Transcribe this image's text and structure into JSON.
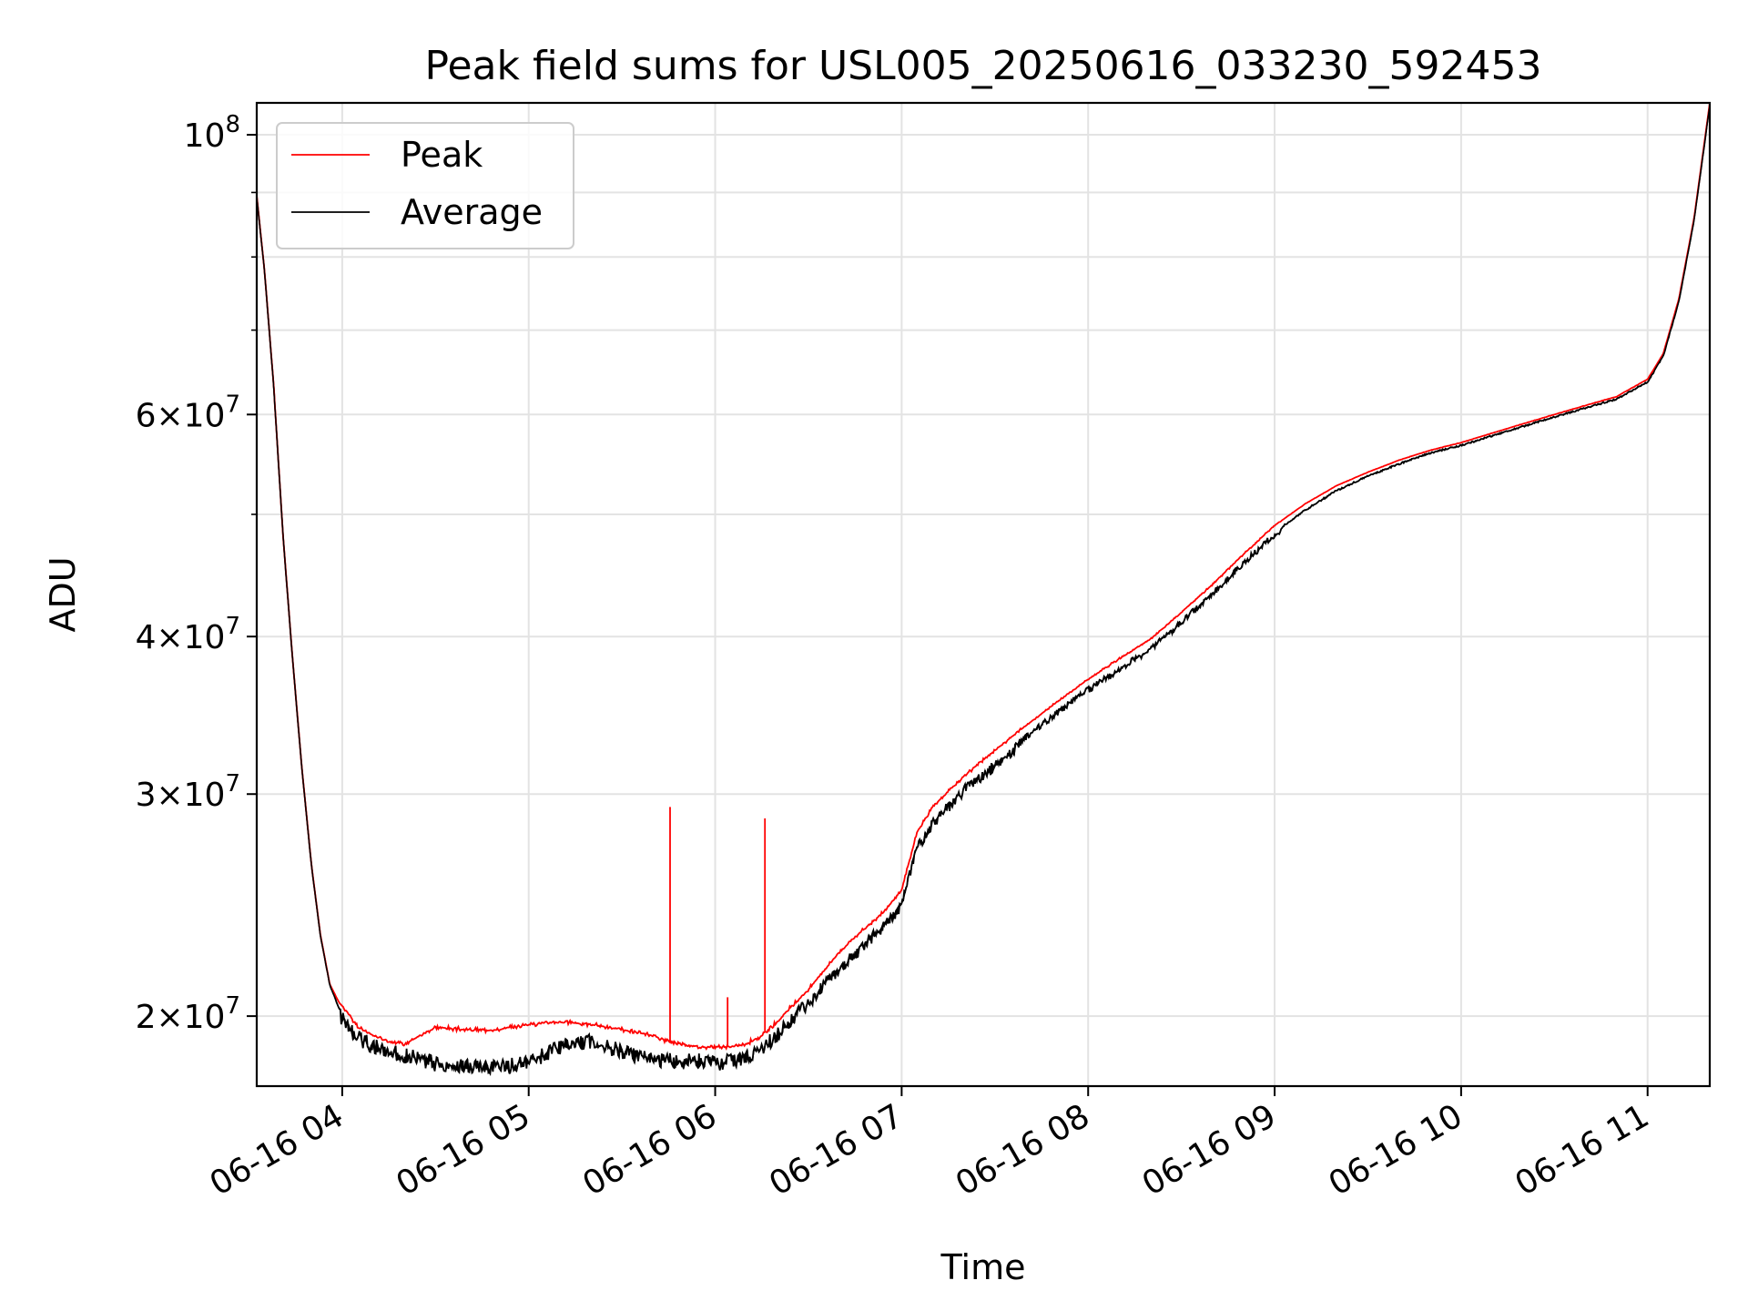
{
  "chart_data": {
    "type": "line",
    "title": "Peak field sums for USL005_20250616_033230_592453",
    "xlabel": "Time",
    "ylabel": "ADU",
    "yscale": "log",
    "xlim": [
      "2025-06-16T03:32:30",
      "2025-06-16T11:20:00"
    ],
    "ylim": [
      17600000,
      106000000
    ],
    "x_ticks": [
      {
        "at": "2025-06-16T04:00:00",
        "label": "06-16 04"
      },
      {
        "at": "2025-06-16T05:00:00",
        "label": "06-16 05"
      },
      {
        "at": "2025-06-16T06:00:00",
        "label": "06-16 06"
      },
      {
        "at": "2025-06-16T07:00:00",
        "label": "06-16 07"
      },
      {
        "at": "2025-06-16T08:00:00",
        "label": "06-16 08"
      },
      {
        "at": "2025-06-16T09:00:00",
        "label": "06-16 09"
      },
      {
        "at": "2025-06-16T10:00:00",
        "label": "06-16 10"
      },
      {
        "at": "2025-06-16T11:00:00",
        "label": "06-16 11"
      }
    ],
    "y_ticks": [
      {
        "value": 20000000,
        "base": "2",
        "exp": "7"
      },
      {
        "value": 30000000,
        "base": "3",
        "exp": "7"
      },
      {
        "value": 40000000,
        "base": "4",
        "exp": "7"
      },
      {
        "value": 60000000,
        "base": "6",
        "exp": "7"
      },
      {
        "value": 100000000,
        "base": "10",
        "exp": "8"
      }
    ],
    "y_minor_ticks": [
      50000000,
      70000000,
      80000000,
      90000000
    ],
    "grid": true,
    "legend_position": "top-left",
    "series": [
      {
        "name": "Peak",
        "color": "#ff0000",
        "x": [
          "03:32",
          "03:35",
          "03:38",
          "03:41",
          "03:44",
          "03:47",
          "03:50",
          "03:53",
          "03:56",
          "03:59",
          "04:02",
          "04:05",
          "04:10",
          "04:15",
          "04:20",
          "04:30",
          "04:40",
          "04:50",
          "05:00",
          "05:10",
          "05:20",
          "05:30",
          "05:40",
          "05:45",
          "05:50",
          "05:55",
          "06:00",
          "06:05",
          "06:10",
          "06:15",
          "06:20",
          "06:30",
          "06:40",
          "06:50",
          "06:55",
          "07:00",
          "07:05",
          "07:10",
          "07:20",
          "07:30",
          "07:40",
          "07:50",
          "08:00",
          "08:10",
          "08:20",
          "08:30",
          "08:40",
          "08:50",
          "09:00",
          "09:10",
          "09:20",
          "09:30",
          "09:40",
          "09:50",
          "10:00",
          "10:10",
          "10:20",
          "10:30",
          "10:40",
          "10:50",
          "11:00",
          "11:05",
          "11:10",
          "11:15",
          "11:20"
        ],
        "y": [
          92000000,
          78000000,
          63000000,
          48000000,
          38500000,
          31500000,
          26500000,
          23200000,
          21200000,
          20500000,
          20100000,
          19600000,
          19300000,
          19100000,
          19000000,
          19600000,
          19500000,
          19500000,
          19700000,
          19800000,
          19700000,
          19500000,
          19300000,
          19100000,
          19000000,
          18900000,
          18900000,
          18900000,
          19000000,
          19300000,
          19800000,
          21000000,
          22500000,
          23700000,
          24300000,
          25200000,
          28000000,
          29300000,
          31000000,
          32500000,
          34000000,
          35500000,
          37000000,
          38400000,
          39800000,
          41800000,
          44000000,
          46500000,
          49000000,
          51000000,
          52700000,
          54000000,
          55200000,
          56200000,
          57000000,
          58000000,
          59000000,
          60000000,
          61000000,
          62000000,
          64000000,
          67000000,
          74000000,
          86000000,
          106000000
        ]
      },
      {
        "name": "Average",
        "color": "#000000",
        "x": [
          "03:32",
          "03:35",
          "03:38",
          "03:41",
          "03:44",
          "03:47",
          "03:50",
          "03:53",
          "03:56",
          "03:59",
          "04:02",
          "04:05",
          "04:10",
          "04:15",
          "04:20",
          "04:30",
          "04:40",
          "04:50",
          "05:00",
          "05:10",
          "05:20",
          "05:30",
          "05:40",
          "05:45",
          "05:50",
          "05:55",
          "06:00",
          "06:05",
          "06:10",
          "06:15",
          "06:20",
          "06:30",
          "06:40",
          "06:50",
          "06:55",
          "07:00",
          "07:05",
          "07:10",
          "07:20",
          "07:30",
          "07:40",
          "07:50",
          "08:00",
          "08:10",
          "08:20",
          "08:30",
          "08:40",
          "08:50",
          "09:00",
          "09:10",
          "09:20",
          "09:30",
          "09:40",
          "09:50",
          "10:00",
          "10:10",
          "10:20",
          "10:30",
          "10:40",
          "10:50",
          "11:00",
          "11:05",
          "11:10",
          "11:15",
          "11:20"
        ],
        "y": [
          92000000,
          78000000,
          63000000,
          48000000,
          38500000,
          31500000,
          26500000,
          23200000,
          21200000,
          20300000,
          19900000,
          19500000,
          19200000,
          19000000,
          18900000,
          18600000,
          18500000,
          18500000,
          18600000,
          19200000,
          19400000,
          19000000,
          18700000,
          18700000,
          18700000,
          18700000,
          18600000,
          18700000,
          18800000,
          19100000,
          19600000,
          20800000,
          22000000,
          23300000,
          23900000,
          24800000,
          27500000,
          28800000,
          30500000,
          32000000,
          33500000,
          35000000,
          36500000,
          37900000,
          39300000,
          41300000,
          43500000,
          46000000,
          48500000,
          50500000,
          52300000,
          53700000,
          54900000,
          56000000,
          56800000,
          57800000,
          58800000,
          59800000,
          60800000,
          61800000,
          63800000,
          66800000,
          73800000,
          85800000,
          105800000
        ]
      }
    ],
    "annotations": [
      {
        "series": "Peak",
        "at": "05:45:30",
        "value": 29300000,
        "kind": "spike"
      },
      {
        "series": "Peak",
        "at": "06:04:00",
        "value": 20700000,
        "kind": "spike"
      },
      {
        "series": "Peak",
        "at": "06:16:00",
        "value": 28700000,
        "kind": "spike"
      }
    ]
  }
}
